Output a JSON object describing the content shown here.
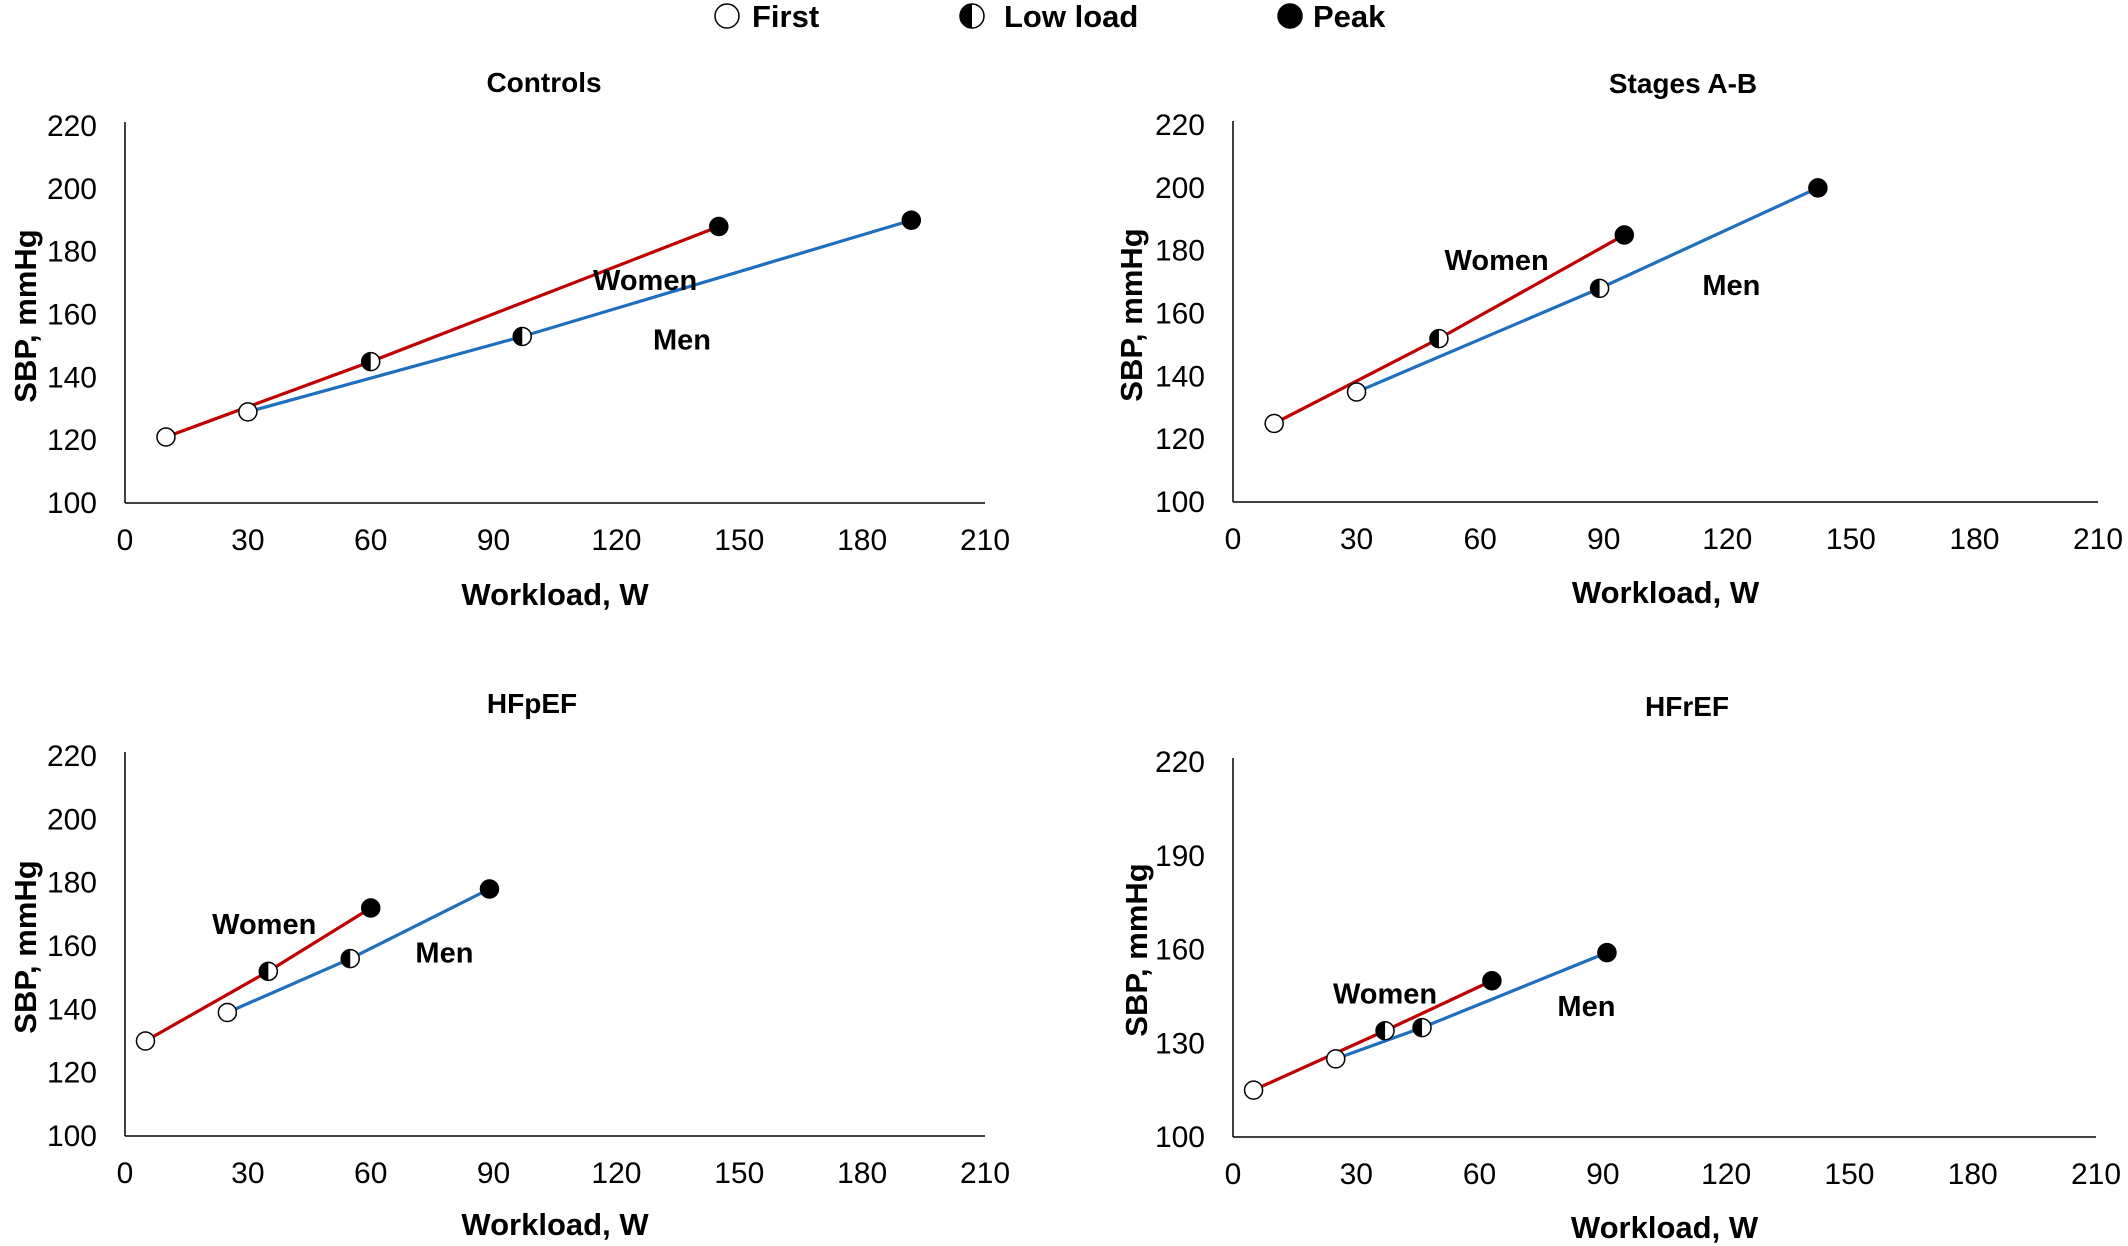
{
  "legend": [
    {
      "label": "First",
      "marker": "open-circle"
    },
    {
      "label": "Low load",
      "marker": "half-filled-circle"
    },
    {
      "label": "Peak",
      "marker": "filled-circle"
    }
  ],
  "colors": {
    "women": "#c00000",
    "men": "#1f6fbf",
    "axis": "#000000"
  },
  "chart_data": [
    {
      "type": "line",
      "title": "Controls",
      "xlabel": "Workload, W",
      "ylabel": "SBP, mmHg",
      "xlim": [
        0,
        210
      ],
      "ylim": [
        100,
        220
      ],
      "xticks": [
        0,
        30,
        60,
        90,
        120,
        150,
        180,
        210
      ],
      "yticks": [
        100,
        120,
        140,
        160,
        180,
        200,
        220
      ],
      "grid": false,
      "series": [
        {
          "name": "Women",
          "color": "#c00000",
          "points": [
            {
              "x": 10,
              "y": 121
            },
            {
              "x": 60,
              "y": 145
            },
            {
              "x": 145,
              "y": 188
            }
          ]
        },
        {
          "name": "Men",
          "color": "#1f6fbf",
          "points": [
            {
              "x": 30,
              "y": 129
            },
            {
              "x": 97,
              "y": 153
            },
            {
              "x": 192,
              "y": 190
            }
          ]
        }
      ],
      "labels": [
        {
          "text": "Women",
          "x": 127,
          "y": 171
        },
        {
          "text": "Men",
          "x": 136,
          "y": 152
        }
      ]
    },
    {
      "type": "line",
      "title": "Stages A-B",
      "xlabel": "Workload, W",
      "ylabel": "SBP, mmHg",
      "xlim": [
        0,
        210
      ],
      "ylim": [
        100,
        220
      ],
      "xticks": [
        0,
        30,
        60,
        90,
        120,
        150,
        180,
        210
      ],
      "yticks": [
        100,
        120,
        140,
        160,
        180,
        200,
        220
      ],
      "grid": false,
      "series": [
        {
          "name": "Women",
          "color": "#c00000",
          "points": [
            {
              "x": 10,
              "y": 125
            },
            {
              "x": 50,
              "y": 152
            },
            {
              "x": 95,
              "y": 185
            }
          ]
        },
        {
          "name": "Men",
          "color": "#1f6fbf",
          "points": [
            {
              "x": 30,
              "y": 135
            },
            {
              "x": 89,
              "y": 168
            },
            {
              "x": 142,
              "y": 200
            }
          ]
        }
      ],
      "labels": [
        {
          "text": "Women",
          "x": 64,
          "y": 177
        },
        {
          "text": "Men",
          "x": 121,
          "y": 169
        }
      ]
    },
    {
      "type": "line",
      "title": "HFpEF",
      "xlabel": "Workload, W",
      "ylabel": "SBP, mmHg",
      "xlim": [
        0,
        210
      ],
      "ylim": [
        100,
        220
      ],
      "xticks": [
        0,
        30,
        60,
        90,
        120,
        150,
        180,
        210
      ],
      "yticks": [
        100,
        120,
        140,
        160,
        180,
        200,
        220
      ],
      "grid": false,
      "series": [
        {
          "name": "Women",
          "color": "#c00000",
          "points": [
            {
              "x": 5,
              "y": 130
            },
            {
              "x": 35,
              "y": 152
            },
            {
              "x": 60,
              "y": 172
            }
          ]
        },
        {
          "name": "Men",
          "color": "#1f6fbf",
          "points": [
            {
              "x": 25,
              "y": 139
            },
            {
              "x": 55,
              "y": 156
            },
            {
              "x": 89,
              "y": 178
            }
          ]
        }
      ],
      "labels": [
        {
          "text": "Women",
          "x": 34,
          "y": 167
        },
        {
          "text": "Men",
          "x": 78,
          "y": 158
        }
      ]
    },
    {
      "type": "line",
      "title": "HFrEF",
      "xlabel": "Workload, W",
      "ylabel": "SBP, mmHg",
      "xlim": [
        0,
        210
      ],
      "ylim": [
        100,
        220
      ],
      "xticks": [
        0,
        30,
        60,
        90,
        120,
        150,
        180,
        210
      ],
      "yticks": [
        100,
        130,
        160,
        190,
        220
      ],
      "grid": false,
      "series": [
        {
          "name": "Women",
          "color": "#c00000",
          "points": [
            {
              "x": 5,
              "y": 115
            },
            {
              "x": 37,
              "y": 134
            },
            {
              "x": 63,
              "y": 150
            }
          ]
        },
        {
          "name": "Men",
          "color": "#1f6fbf",
          "points": [
            {
              "x": 25,
              "y": 125
            },
            {
              "x": 46,
              "y": 135
            },
            {
              "x": 91,
              "y": 159
            }
          ]
        }
      ],
      "labels": [
        {
          "text": "Women",
          "x": 37,
          "y": 146
        },
        {
          "text": "Men",
          "x": 86,
          "y": 142
        }
      ]
    }
  ]
}
